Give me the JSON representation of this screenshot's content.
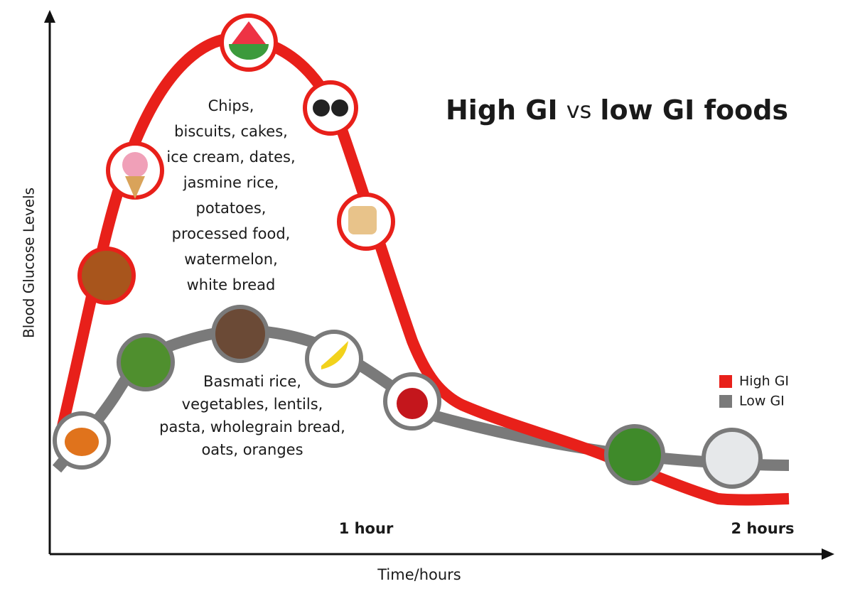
{
  "title": {
    "first": "High GI",
    "middle": "vs",
    "last": "low GI foods"
  },
  "y_axis_label": "Blood Glucose Levels",
  "x_axis_label": "Time/hours",
  "time_marks": [
    "1 hour",
    "2 hours"
  ],
  "high_gi_foods": [
    "Chips,",
    "biscuits, cakes,",
    "ice cream, dates,",
    "jasmine rice,",
    "potatoes,",
    "processed food,",
    "watermelon,",
    "white bread"
  ],
  "low_gi_foods": [
    "Basmati rice,",
    "vegetables, lentils,",
    "pasta, wholegrain bread,",
    "oats, oranges"
  ],
  "legend": [
    {
      "label": "High GI",
      "color": "#e8201a"
    },
    {
      "label": "Low GI",
      "color": "#7a7a7a"
    }
  ]
}
